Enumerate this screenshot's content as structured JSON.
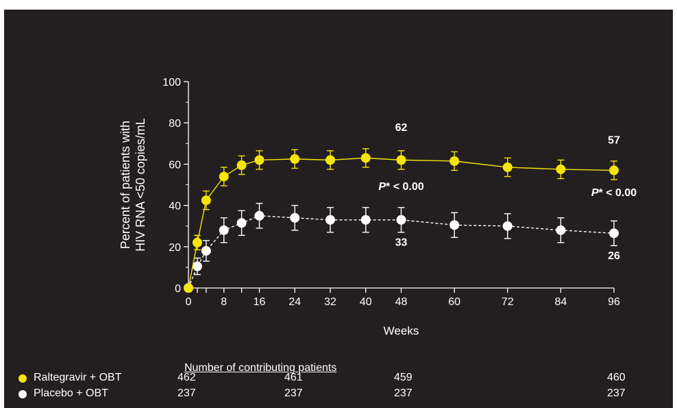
{
  "colors": {
    "background": "#231f20",
    "raltegravir": "#f5e50a",
    "placebo": "#ffffff",
    "text": "#ffffff"
  },
  "chart_data": {
    "type": "line",
    "title": "",
    "xlabel": "Weeks",
    "ylabel_line1": "Percent of patients with",
    "ylabel_line2": "HIV RNA <50 copies/mL",
    "xlim": [
      0,
      96
    ],
    "ylim": [
      0,
      100
    ],
    "x_ticks": [
      0,
      8,
      16,
      24,
      32,
      40,
      48,
      60,
      72,
      84,
      96
    ],
    "x_minor_ticks": [
      2,
      4,
      12
    ],
    "y_ticks": [
      0,
      20,
      40,
      60,
      80,
      100
    ],
    "grid": false,
    "series": [
      {
        "name": "Raltegravir + OBT",
        "color": "#f5e50a",
        "line_style": "solid",
        "x": [
          0,
          2,
          4,
          8,
          12,
          16,
          24,
          32,
          40,
          48,
          60,
          72,
          84,
          96
        ],
        "y": [
          0,
          22,
          42.5,
          54,
          59.5,
          62,
          62.5,
          62,
          63,
          62,
          61.5,
          58.5,
          57.5,
          57
        ],
        "err_upper": [
          0,
          3.5,
          4.5,
          4.5,
          4.5,
          4.5,
          4.5,
          4.5,
          4.5,
          4.5,
          4.5,
          4.5,
          4.5,
          4.5
        ],
        "err_lower": [
          0,
          3.5,
          4.5,
          4.5,
          4.5,
          4.5,
          4.5,
          4.5,
          4.5,
          4.5,
          4.5,
          4.5,
          4.5,
          4.5
        ]
      },
      {
        "name": "Placebo + OBT",
        "color": "#ffffff",
        "line_style": "dashed",
        "x": [
          0,
          2,
          4,
          8,
          12,
          16,
          24,
          32,
          40,
          48,
          60,
          72,
          84,
          96
        ],
        "y": [
          0,
          10.5,
          18,
          28,
          31.5,
          35,
          34,
          33,
          33,
          33,
          30.5,
          30,
          28,
          26.5
        ],
        "err_upper": [
          0,
          4,
          5,
          6,
          6,
          6,
          6,
          6,
          6,
          6,
          6,
          6,
          6,
          6
        ],
        "err_lower": [
          0,
          4,
          5,
          6,
          6,
          6,
          6,
          6,
          6,
          6,
          6,
          6,
          6,
          6
        ]
      }
    ],
    "annotations": {
      "ral_48": "62",
      "ral_96": "57",
      "pla_48": "33",
      "pla_96": "26",
      "p48_prefix": "P",
      "p48_suffix": "* < 0.00",
      "p96_prefix": "P",
      "p96_suffix": "* < 0.00"
    },
    "annotation_anchors": {
      "ral_48": [
        48,
        76
      ],
      "ral_96": [
        96,
        70
      ],
      "pla_48": [
        48,
        20.5
      ],
      "pla_96": [
        96,
        14
      ],
      "p48": [
        48,
        47.5
      ],
      "p96": [
        96,
        44.5
      ]
    }
  },
  "table": {
    "header": "Number of contributing patients",
    "rows": [
      {
        "label": "Raltegravir + OBT",
        "dot_color": "#f5e50a",
        "values": [
          "462",
          "461",
          "459",
          "460"
        ]
      },
      {
        "label": "Placebo + OBT",
        "dot_color": "#ffffff",
        "values": [
          "237",
          "237",
          "237",
          "237"
        ]
      }
    ]
  }
}
